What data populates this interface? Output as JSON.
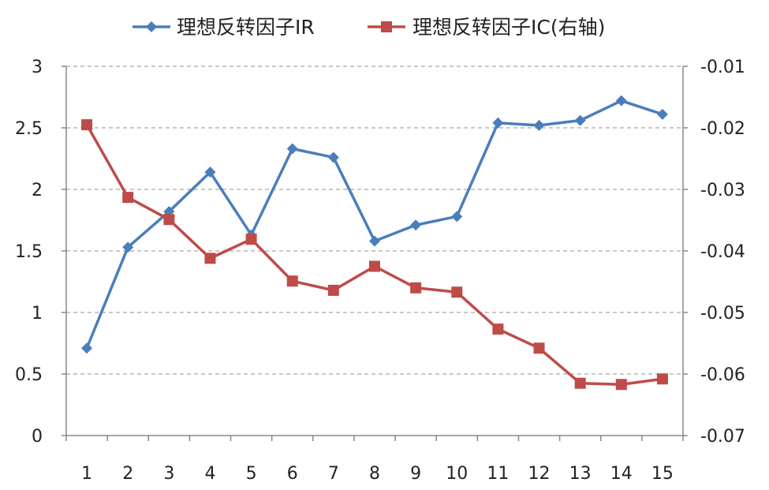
{
  "chart_data": {
    "type": "line",
    "categories": [
      "1",
      "2",
      "3",
      "4",
      "5",
      "6",
      "7",
      "8",
      "9",
      "10",
      "11",
      "12",
      "13",
      "14",
      "15"
    ],
    "series": [
      {
        "name": "理想反转因子IR",
        "axis": "left",
        "color": "#4a7ebb",
        "marker": "diamond",
        "values": [
          0.71,
          1.53,
          1.82,
          2.14,
          1.63,
          2.33,
          2.26,
          1.58,
          1.71,
          1.78,
          2.54,
          2.52,
          2.56,
          2.72,
          2.61
        ]
      },
      {
        "name": "理想反转因子IC(右轴)",
        "axis": "right",
        "color": "#be4b48",
        "marker": "square",
        "values": [
          -0.0195,
          -0.0313,
          -0.0349,
          -0.0412,
          -0.0381,
          -0.0449,
          -0.0464,
          -0.0425,
          -0.046,
          -0.0467,
          -0.0527,
          -0.0558,
          -0.0615,
          -0.0617,
          -0.0608
        ]
      }
    ],
    "y_left": {
      "range": [
        0,
        3
      ],
      "ticks": [
        "0",
        "0.5",
        "1",
        "1.5",
        "2",
        "2.5",
        "3"
      ]
    },
    "y_right": {
      "range": [
        -0.07,
        -0.01
      ],
      "ticks": [
        "-0.07",
        "-0.06",
        "-0.05",
        "-0.04",
        "-0.03",
        "-0.02",
        "-0.01"
      ]
    },
    "grid": true,
    "legend": "top"
  }
}
